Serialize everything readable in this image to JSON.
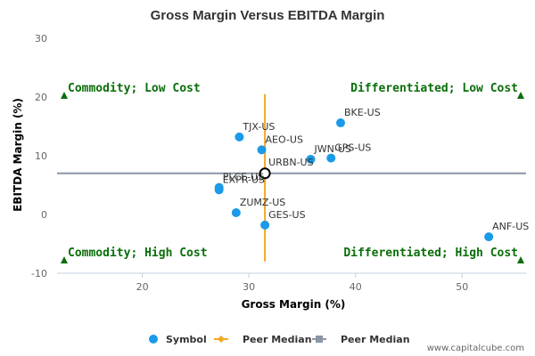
{
  "chart_data": {
    "type": "scatter",
    "title": "Gross Margin Versus EBITDA Margin",
    "xlabel": "Gross Margin (%)",
    "ylabel": "EBITDA Margin (%)",
    "xlim": [
      12,
      56
    ],
    "ylim": [
      -10,
      30
    ],
    "xticks": [
      20,
      30,
      40,
      50
    ],
    "yticks": [
      -10,
      0,
      10,
      20,
      30
    ],
    "grid": false,
    "legend_position": "bottom",
    "points": [
      {
        "label": "BKE-US",
        "x": 38.6,
        "y": 15.6
      },
      {
        "label": "TJX-US",
        "x": 29.1,
        "y": 13.2
      },
      {
        "label": "AEO-US",
        "x": 31.2,
        "y": 11.0
      },
      {
        "label": "JWN-US",
        "x": 35.8,
        "y": 9.4
      },
      {
        "label": "GPS-US",
        "x": 37.7,
        "y": 9.6
      },
      {
        "label": "PLCE-US",
        "x": 27.2,
        "y": 4.6
      },
      {
        "label": "EXPR-US",
        "x": 27.2,
        "y": 4.2
      },
      {
        "label": "ZUMZ-US",
        "x": 28.8,
        "y": 0.3
      },
      {
        "label": "GES-US",
        "x": 31.5,
        "y": -1.8
      },
      {
        "label": "ANF-US",
        "x": 52.5,
        "y": -3.8
      }
    ],
    "focus_point": {
      "label": "URBN-US",
      "x": 31.5,
      "y": 7.0
    },
    "peer_median_x": 31.5,
    "peer_median_y": 7.0,
    "vertical_median_range": [
      -8,
      20.5
    ],
    "horizontal_median_range": [
      12,
      56
    ],
    "quadrants": [
      {
        "label": "Commodity; Low Cost",
        "position": "top-left"
      },
      {
        "label": "Differentiated; Low Cost",
        "position": "top-right"
      },
      {
        "label": "Commodity; High Cost",
        "position": "bottom-left"
      },
      {
        "label": "Differentiated; High Cost",
        "position": "bottom-right"
      }
    ],
    "legend": [
      {
        "label": "Symbol",
        "marker": "circle"
      },
      {
        "label": "Peer Median",
        "marker": "diamond-line"
      },
      {
        "label": "Peer Median",
        "marker": "square-line"
      }
    ]
  },
  "colors": {
    "point": "#1a9ae8",
    "vertical_median": "#f5a623",
    "horizontal_median": "#8a96a3",
    "quadrant_text": "#0a6e0a",
    "quadrant_marker": "#0a6e0a"
  },
  "watermark": "www.capitalcube.com"
}
